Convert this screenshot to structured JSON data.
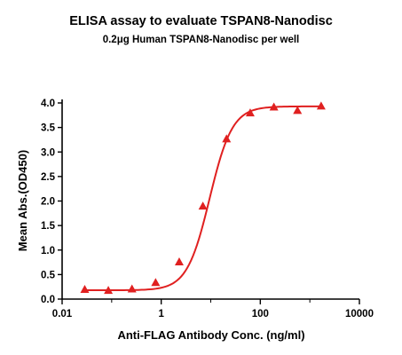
{
  "chart_data": {
    "type": "scatter",
    "title": "ELISA assay to evaluate TSPAN8-Nanodisc",
    "subtitle": "0.2μg Human TSPAN8-Nanodisc per well",
    "xlabel": "Anti-FLAG Antibody Conc. (ng/ml)",
    "ylabel": "Mean Abs.(OD450)",
    "x_scale": "log",
    "xlim": [
      0.01,
      10000
    ],
    "ylim": [
      0,
      4
    ],
    "x_ticks": [
      0.01,
      1,
      100,
      10000
    ],
    "x_tick_labels": [
      "0.01",
      "1",
      "100",
      "10000"
    ],
    "y_ticks": [
      0,
      0.5,
      1,
      1.5,
      2,
      2.5,
      3,
      3.5,
      4
    ],
    "y_tick_labels": [
      "0.0",
      "0.5",
      "1.0",
      "1.5",
      "2.0",
      "2.5",
      "3.0",
      "3.5",
      "4.0"
    ],
    "grid": false,
    "legend": "none",
    "color": "#e02020",
    "marker": "triangle",
    "series": [
      {
        "x": [
          0.0286,
          0.0857,
          0.257,
          0.771,
          2.31,
          6.94,
          20.8,
          62.5,
          188,
          563,
          1690
        ],
        "y": [
          0.19,
          0.17,
          0.2,
          0.33,
          0.75,
          1.89,
          3.26,
          3.79,
          3.91,
          3.84,
          3.93
        ]
      }
    ],
    "fit_curve": {
      "type": "4PL",
      "bottom": 0.18,
      "top": 3.93,
      "ec50": 9.5,
      "hill": 1.9
    }
  }
}
